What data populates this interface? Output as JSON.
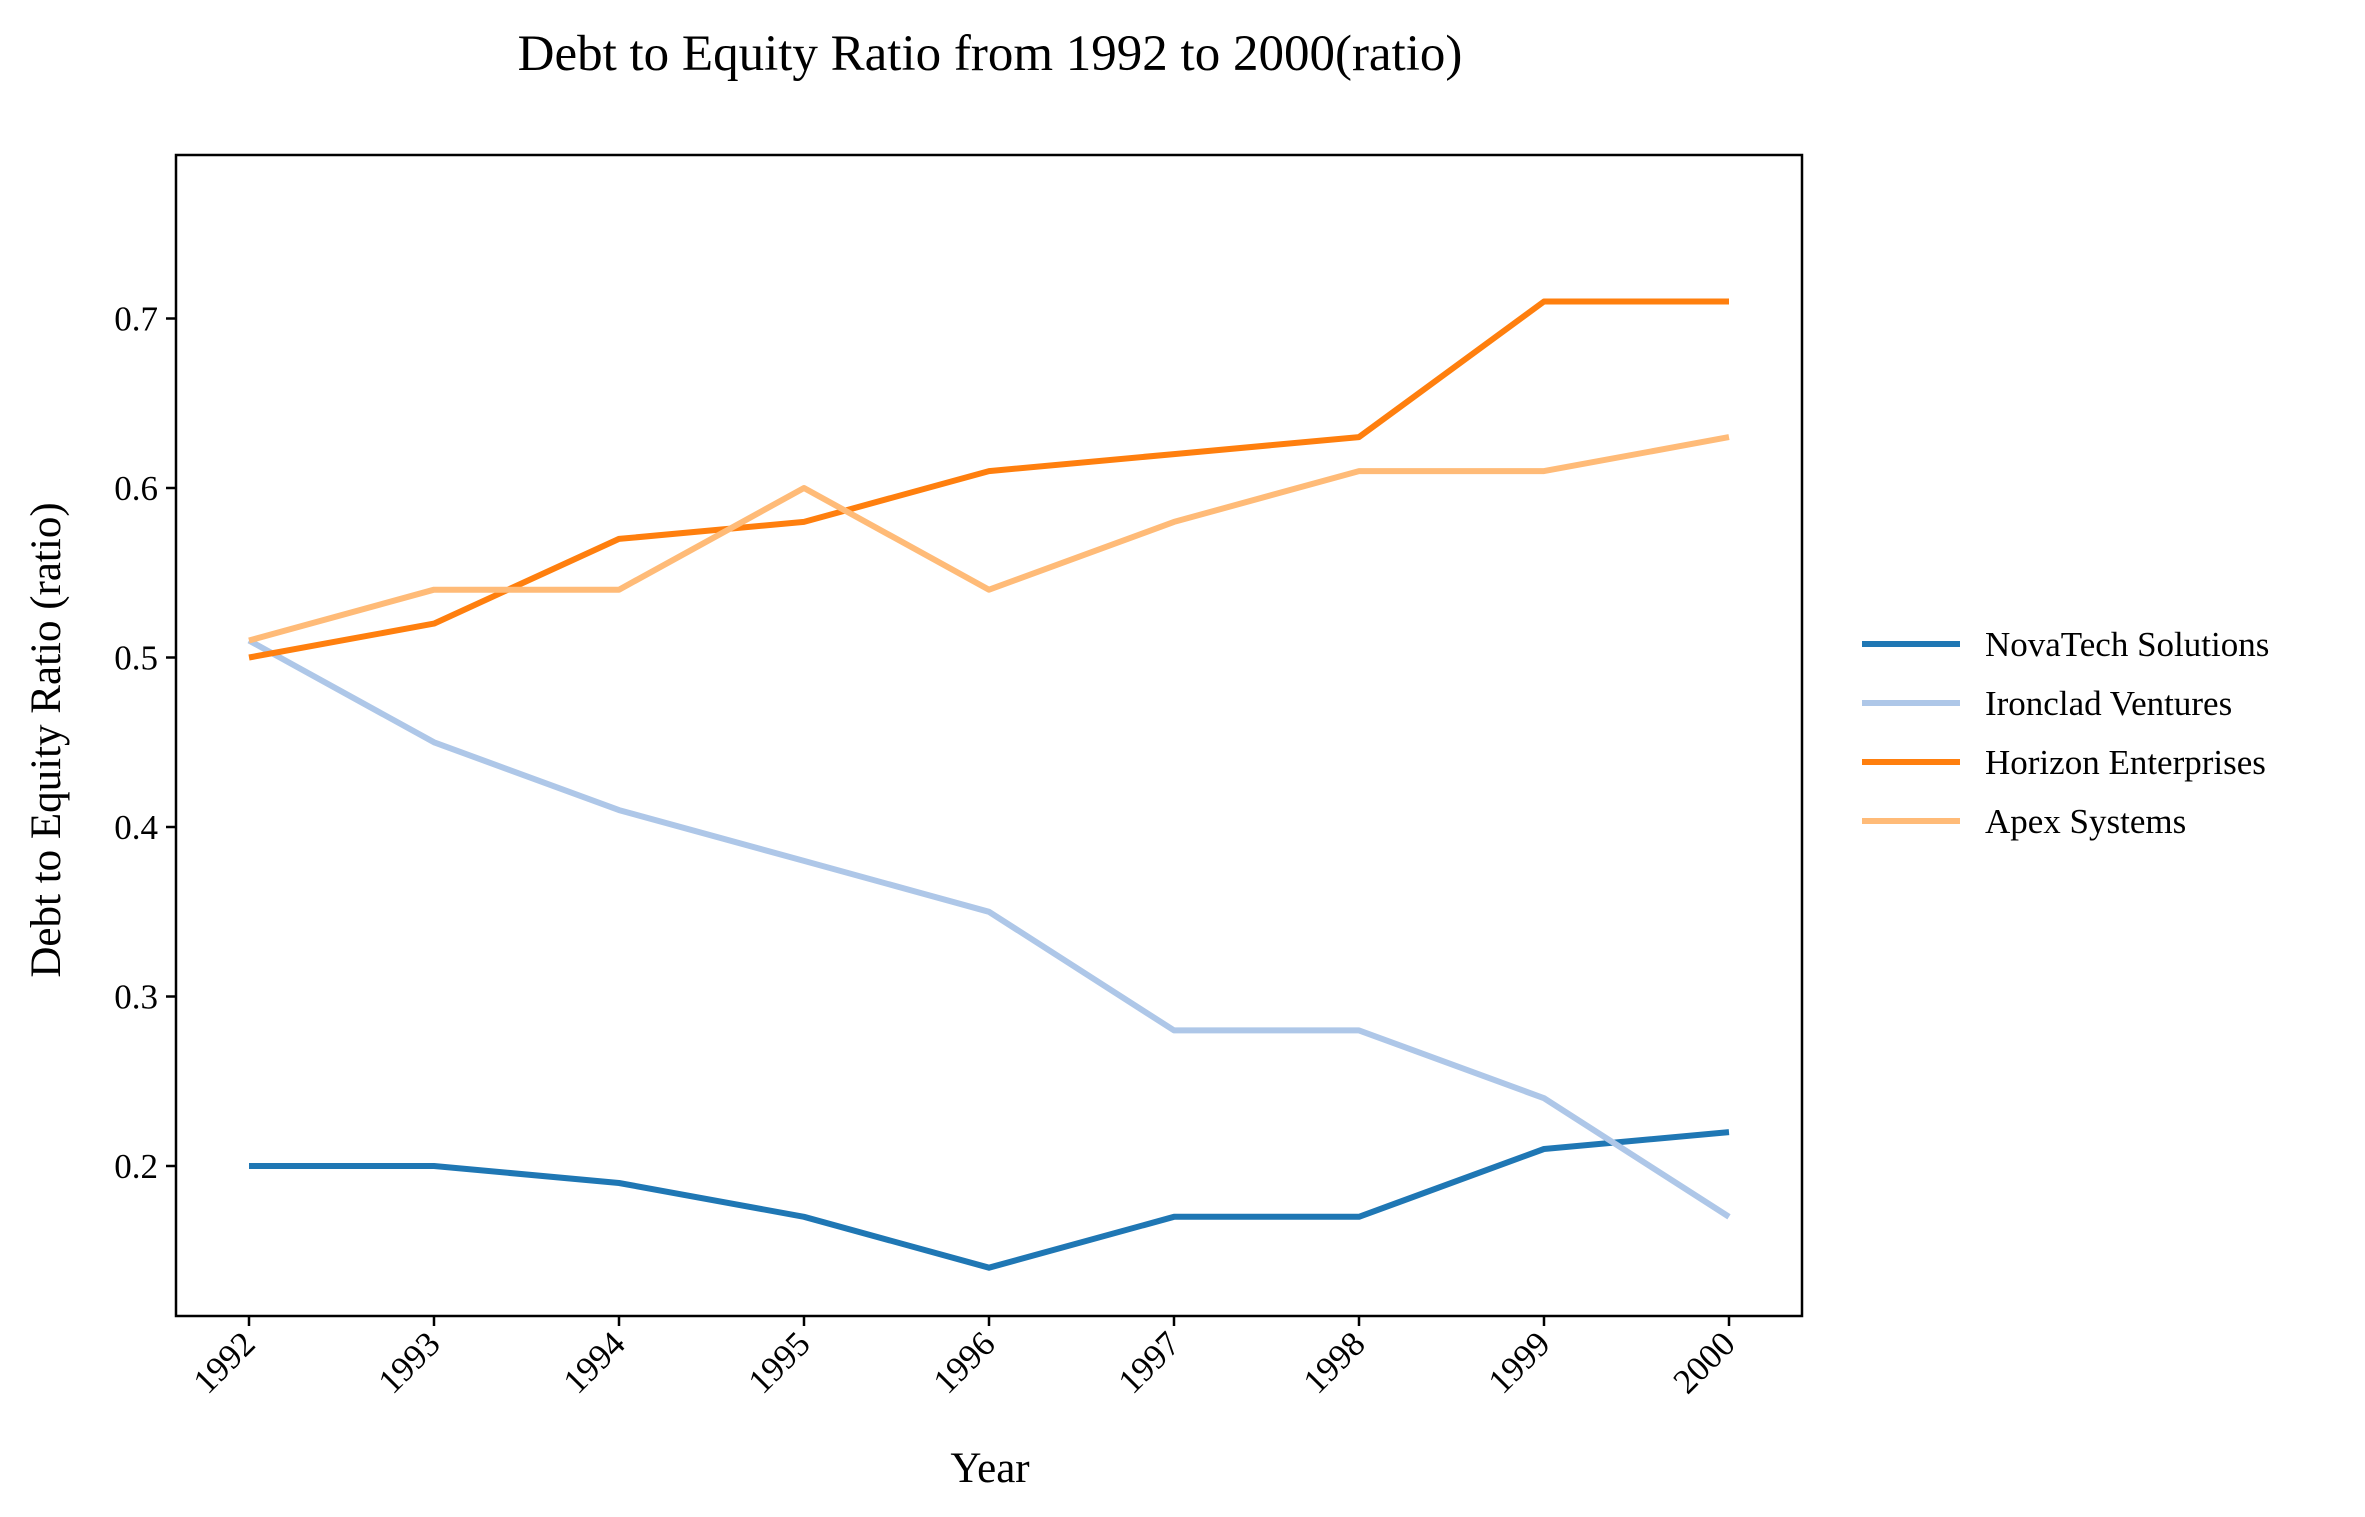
{
  "chart_data": {
    "type": "line",
    "title": "Debt to Equity Ratio from 1992 to 2000(ratio)",
    "xlabel": "Year",
    "ylabel": "Debt to Equity Ratio (ratio)",
    "categories": [
      "1992",
      "1993",
      "1994",
      "1995",
      "1996",
      "1997",
      "1998",
      "1999",
      "2000"
    ],
    "yticks": [
      "0.2",
      "0.3",
      "0.4",
      "0.5",
      "0.6",
      "0.7"
    ],
    "ylim": [
      0.11,
      0.795
    ],
    "grid": false,
    "legend_position": "right",
    "series": [
      {
        "name": "NovaTech Solutions",
        "color": "#1f77b4",
        "values": [
          0.2,
          0.2,
          0.19,
          0.17,
          0.14,
          0.17,
          0.17,
          0.21,
          0.22
        ]
      },
      {
        "name": "Ironclad Ventures",
        "color": "#aec7e8",
        "values": [
          0.51,
          0.45,
          0.41,
          0.38,
          0.35,
          0.28,
          0.28,
          0.24,
          0.17
        ]
      },
      {
        "name": "Horizon Enterprises",
        "color": "#ff7f0e",
        "values": [
          0.5,
          0.52,
          0.57,
          0.58,
          0.61,
          0.62,
          0.63,
          0.71,
          0.71
        ]
      },
      {
        "name": "Apex Systems",
        "color": "#ffbb78",
        "values": [
          0.51,
          0.54,
          0.54,
          0.6,
          0.54,
          0.58,
          0.61,
          0.61,
          0.63
        ]
      }
    ]
  }
}
